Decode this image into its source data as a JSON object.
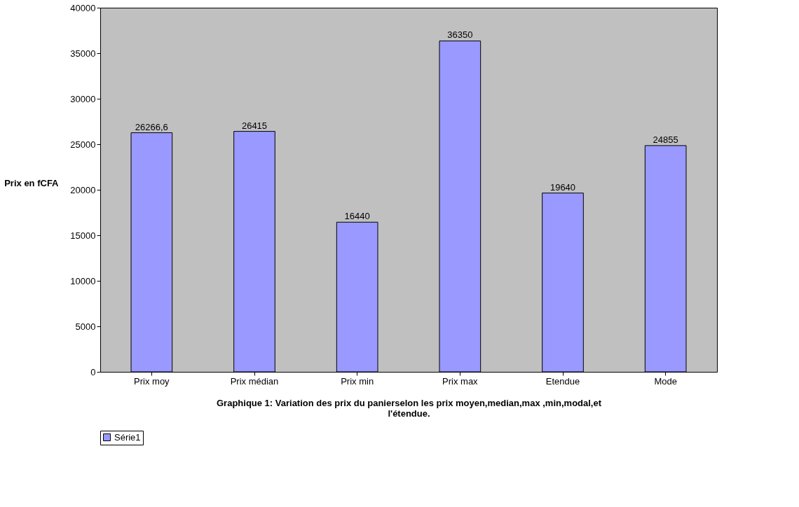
{
  "chart_data": {
    "type": "bar",
    "title": "Graphique 1: Variation des prix du panierselon les prix moyen,median,max ,min,modal,et l'étendue.",
    "ylabel": "Prix en fCFA",
    "categories": [
      "Prix moy",
      "Prix médian",
      "Prix min",
      "Prix max",
      "Etendue",
      "Mode"
    ],
    "series": [
      {
        "name": "Série1",
        "color": "#9999ff",
        "values": [
          26266.6,
          26415,
          16440,
          36350,
          19640,
          24855
        ],
        "value_labels": [
          "26266,6",
          "26415",
          "16440",
          "36350",
          "19640",
          "24855"
        ]
      }
    ],
    "ylim": [
      0,
      40000
    ],
    "yticks": [
      0,
      5000,
      10000,
      15000,
      20000,
      25000,
      30000,
      35000,
      40000
    ],
    "grid": false,
    "legend": "bottom"
  }
}
